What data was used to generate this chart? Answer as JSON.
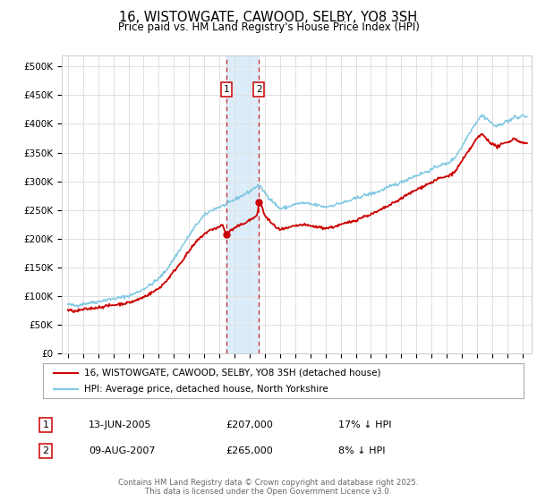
{
  "title": "16, WISTOWGATE, CAWOOD, SELBY, YO8 3SH",
  "subtitle": "Price paid vs. HM Land Registry's House Price Index (HPI)",
  "yticks": [
    0,
    50000,
    100000,
    150000,
    200000,
    250000,
    300000,
    350000,
    400000,
    450000,
    500000
  ],
  "ytick_labels": [
    "£0",
    "£50K",
    "£100K",
    "£150K",
    "£200K",
    "£250K",
    "£300K",
    "£350K",
    "£400K",
    "£450K",
    "£500K"
  ],
  "hpi_color": "#7ec8e3",
  "price_color": "#cc0000",
  "legend_entry1": "16, WISTOWGATE, CAWOOD, SELBY, YO8 3SH (detached house)",
  "legend_entry2": "HPI: Average price, detached house, North Yorkshire",
  "table_row1": [
    "1",
    "13-JUN-2005",
    "£207,000",
    "17% ↓ HPI"
  ],
  "table_row2": [
    "2",
    "09-AUG-2007",
    "£265,000",
    "8% ↓ HPI"
  ],
  "footer": "Contains HM Land Registry data © Crown copyright and database right 2025.\nThis data is licensed under the Open Government Licence v3.0.",
  "background_color": "#ffffff",
  "grid_color": "#e0e0e0",
  "shade_color": "#d6eaf8"
}
